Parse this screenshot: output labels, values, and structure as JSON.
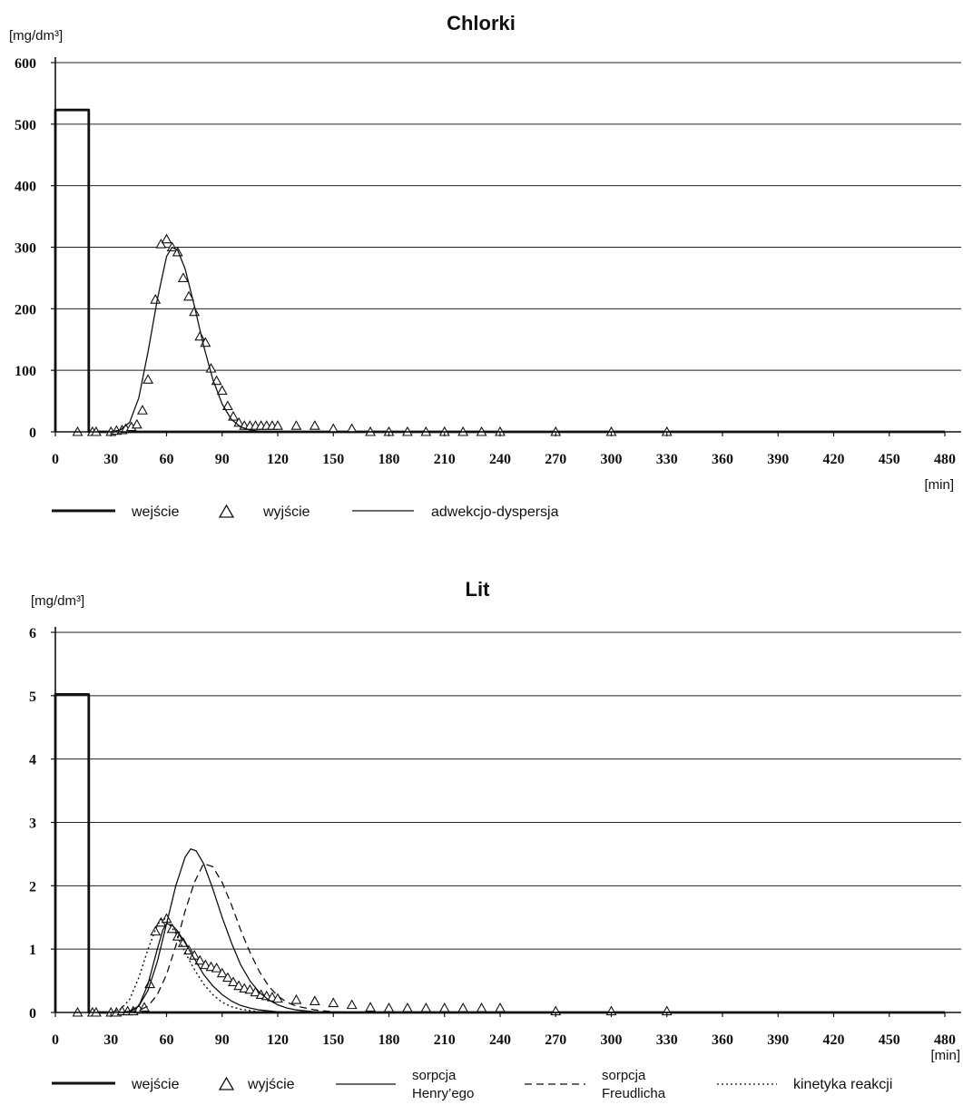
{
  "chart_data": [
    {
      "type": "line",
      "title": "Chlorki",
      "ylabel": "[mg/dm³]",
      "xlabel": "[min]",
      "xlim": [
        0,
        480
      ],
      "ylim": [
        0,
        600
      ],
      "x_ticks": [
        0,
        30,
        60,
        90,
        120,
        150,
        180,
        210,
        240,
        270,
        300,
        330,
        360,
        390,
        420,
        450,
        480
      ],
      "y_ticks": [
        0,
        100,
        200,
        300,
        400,
        500,
        600
      ],
      "grid": "horizontal",
      "legend_position": "bottom",
      "legend": [
        {
          "key": "input",
          "label": "wejście"
        },
        {
          "key": "output",
          "label": "wyjście"
        },
        {
          "key": "model_ad",
          "label": "adwekcjo-dyspersja"
        }
      ],
      "series": [
        {
          "key": "input",
          "name": "wejście",
          "style": "thick-line",
          "x": [
            0,
            0,
            18,
            18,
            480
          ],
          "y": [
            0,
            523,
            523,
            0,
            0
          ]
        },
        {
          "key": "output",
          "name": "wyjście",
          "style": "triangle",
          "x": [
            12,
            20,
            22,
            30,
            33,
            36,
            38,
            41,
            44,
            47,
            50,
            54,
            57,
            60,
            63,
            66,
            69,
            72,
            75,
            78,
            81,
            84,
            87,
            90,
            93,
            96,
            99,
            102,
            105,
            108,
            111,
            114,
            117,
            120,
            130,
            140,
            150,
            160,
            170,
            180,
            190,
            200,
            210,
            220,
            230,
            240,
            270,
            300,
            330
          ],
          "y": [
            0,
            0,
            0,
            0,
            2,
            3,
            5,
            8,
            12,
            35,
            85,
            215,
            305,
            313,
            300,
            292,
            250,
            220,
            195,
            155,
            145,
            103,
            83,
            67,
            42,
            25,
            15,
            10,
            10,
            10,
            10,
            10,
            10,
            10,
            10,
            10,
            5,
            5,
            0,
            0,
            0,
            0,
            0,
            0,
            0,
            0,
            0,
            0,
            0
          ]
        },
        {
          "key": "model_ad",
          "name": "adwekcjo-dyspersja",
          "style": "thin-line",
          "x": [
            30,
            35,
            40,
            45,
            50,
            55,
            60,
            63,
            66,
            70,
            75,
            80,
            85,
            90,
            95,
            100,
            105,
            110,
            120,
            140,
            480
          ],
          "y": [
            0,
            3,
            15,
            55,
            130,
            215,
            285,
            300,
            295,
            265,
            205,
            140,
            85,
            45,
            20,
            8,
            3,
            1,
            0,
            0,
            0
          ]
        }
      ]
    },
    {
      "type": "line",
      "title": "Lit",
      "ylabel": "[mg/dm³]",
      "xlabel": "[min]",
      "xlim": [
        0,
        480
      ],
      "ylim": [
        0,
        6
      ],
      "x_ticks": [
        0,
        30,
        60,
        90,
        120,
        150,
        180,
        210,
        240,
        270,
        300,
        330,
        360,
        390,
        420,
        450,
        480
      ],
      "y_ticks": [
        0,
        1,
        2,
        3,
        4,
        5,
        6
      ],
      "grid": "horizontal",
      "legend_position": "bottom",
      "legend": [
        {
          "key": "input",
          "label": "wejście"
        },
        {
          "key": "output",
          "label": "wyjście"
        },
        {
          "key": "henry",
          "label": "sorpcja",
          "label2": "Henry’ego"
        },
        {
          "key": "freundlich",
          "label": "sorpcja",
          "label2": "Freudlicha"
        },
        {
          "key": "kinetic",
          "label": "kinetyka reakcji"
        }
      ],
      "series": [
        {
          "key": "input",
          "name": "wejście",
          "style": "thick-line",
          "x": [
            0,
            0,
            18,
            18,
            480
          ],
          "y": [
            0,
            5.02,
            5.02,
            0,
            0
          ]
        },
        {
          "key": "output",
          "name": "wyjście",
          "style": "triangle",
          "x": [
            12,
            20,
            22,
            30,
            33,
            36,
            39,
            42,
            45,
            48,
            51,
            54,
            57,
            60,
            63,
            66,
            69,
            72,
            75,
            78,
            81,
            84,
            87,
            90,
            93,
            96,
            99,
            102,
            105,
            108,
            111,
            114,
            117,
            120,
            130,
            140,
            150,
            160,
            170,
            180,
            190,
            200,
            210,
            220,
            230,
            240,
            270,
            300,
            330
          ],
          "y": [
            0,
            0,
            0,
            0,
            0,
            0.02,
            0.02,
            0.02,
            0.05,
            0.08,
            0.45,
            1.28,
            1.42,
            1.48,
            1.32,
            1.2,
            1.1,
            0.98,
            0.9,
            0.82,
            0.75,
            0.72,
            0.7,
            0.62,
            0.55,
            0.48,
            0.42,
            0.38,
            0.36,
            0.32,
            0.28,
            0.26,
            0.24,
            0.22,
            0.2,
            0.18,
            0.15,
            0.12,
            0.08,
            0.07,
            0.07,
            0.07,
            0.07,
            0.07,
            0.07,
            0.07,
            0.02,
            0.02,
            0.02
          ]
        },
        {
          "key": "henry",
          "name": "sorpcja Henry’ego",
          "style": "solid",
          "x": [
            35,
            40,
            45,
            50,
            55,
            60,
            65,
            70,
            73,
            76,
            80,
            85,
            90,
            95,
            100,
            105,
            110,
            115,
            120,
            125,
            130,
            140,
            150,
            480
          ],
          "y": [
            0,
            0.02,
            0.1,
            0.35,
            0.8,
            1.4,
            2.0,
            2.45,
            2.58,
            2.55,
            2.35,
            1.95,
            1.5,
            1.1,
            0.75,
            0.5,
            0.32,
            0.2,
            0.12,
            0.07,
            0.04,
            0.01,
            0,
            0
          ]
        },
        {
          "key": "freundlich",
          "name": "sorpcja Freudlicha",
          "style": "dashed",
          "x": [
            40,
            45,
            50,
            55,
            60,
            65,
            70,
            75,
            80,
            85,
            90,
            95,
            100,
            105,
            110,
            115,
            120,
            125,
            130,
            140,
            150,
            160,
            480
          ],
          "y": [
            0,
            0.03,
            0.1,
            0.28,
            0.6,
            1.05,
            1.6,
            2.05,
            2.35,
            2.3,
            2.05,
            1.7,
            1.3,
            0.95,
            0.65,
            0.42,
            0.26,
            0.16,
            0.1,
            0.04,
            0.01,
            0,
            0
          ]
        },
        {
          "key": "kinetic",
          "name": "kinetyka reakcji",
          "style": "dotted",
          "x": [
            30,
            35,
            40,
            45,
            50,
            55,
            58,
            60,
            65,
            70,
            75,
            80,
            85,
            90,
            95,
            100,
            110,
            120,
            480
          ],
          "y": [
            0,
            0.05,
            0.2,
            0.55,
            1.0,
            1.38,
            1.5,
            1.45,
            1.25,
            0.95,
            0.68,
            0.45,
            0.28,
            0.16,
            0.09,
            0.05,
            0.01,
            0,
            0
          ]
        },
        {
          "key": "henry2",
          "name": "sorpcja Henry’ego",
          "style": "solid",
          "x": [
            40,
            45,
            50,
            55,
            58,
            60,
            63,
            66,
            70,
            75,
            80,
            85,
            90,
            95,
            100,
            105,
            110,
            120,
            130,
            480
          ],
          "y": [
            0,
            0.1,
            0.45,
            1.0,
            1.3,
            1.4,
            1.38,
            1.28,
            1.1,
            0.85,
            0.6,
            0.42,
            0.28,
            0.18,
            0.11,
            0.07,
            0.04,
            0.01,
            0,
            0
          ]
        }
      ]
    }
  ]
}
